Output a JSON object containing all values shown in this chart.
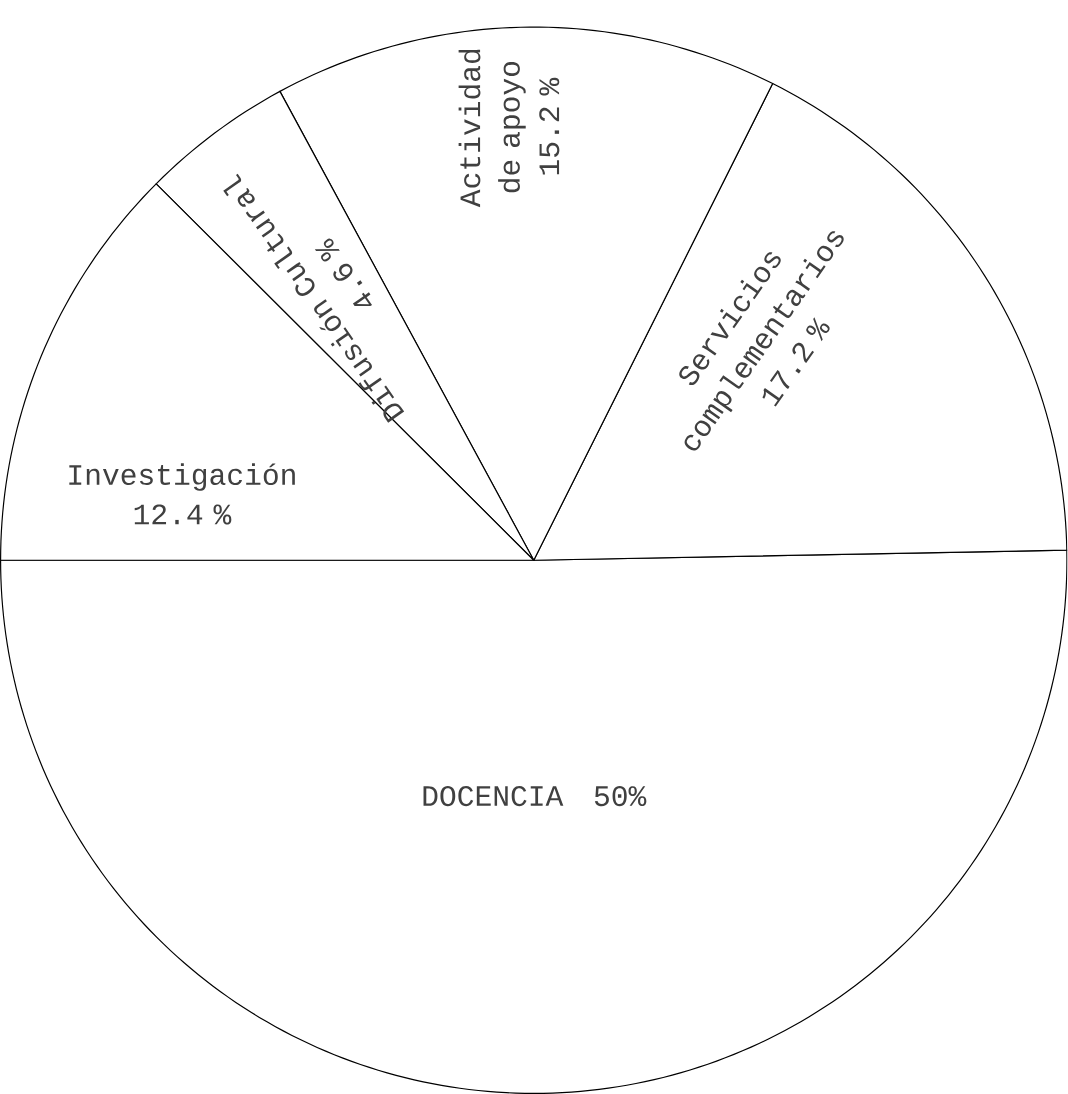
{
  "chart_data": {
    "type": "pie",
    "categories": [
      "DOCENCIA",
      "Servicios complementarios",
      "Actividad de apoyo",
      "Difusión Cultural",
      "Investigación"
    ],
    "values": [
      50,
      17.2,
      15.2,
      4.6,
      12.4
    ],
    "value_labels": [
      "50%",
      "17.2 %",
      "15.2 %",
      "4.6 %",
      "12.4 %"
    ],
    "colors": [
      "#ffffff",
      "#ffffff",
      "#ffffff",
      "#ffffff",
      "#ffffff"
    ]
  }
}
